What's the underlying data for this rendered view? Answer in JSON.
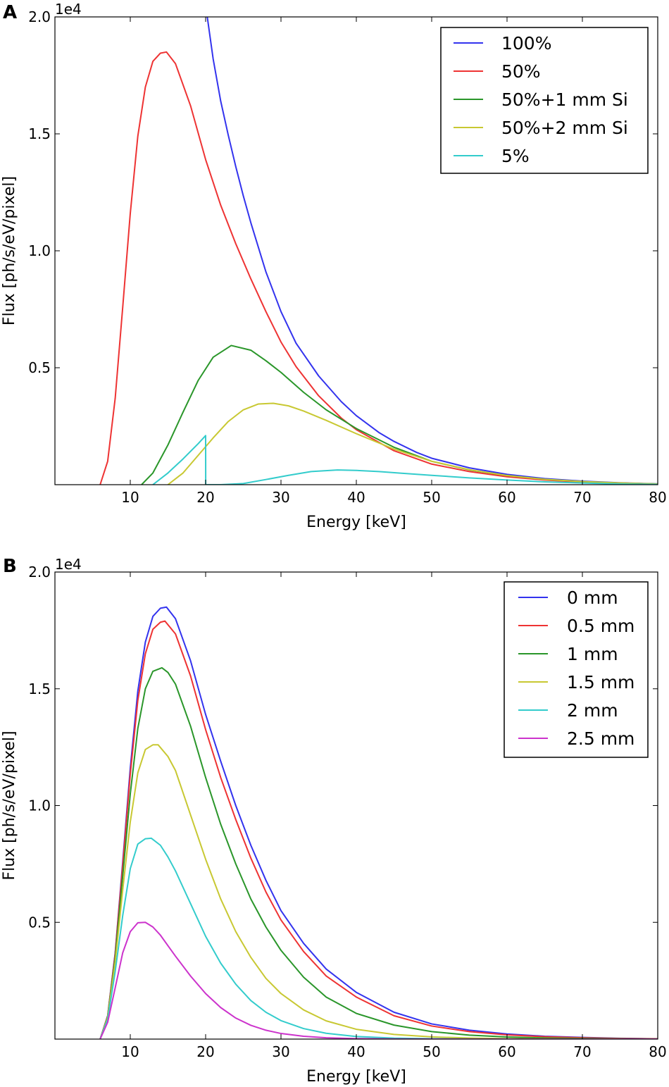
{
  "chart_data": [
    {
      "panel": "A",
      "type": "line",
      "xlabel": "Energy [keV]",
      "ylabel": "Flux [ph/s/eV/pixel]",
      "offset_text": "1e4",
      "xlim": [
        0,
        80
      ],
      "ylim": [
        0,
        20000
      ],
      "xticks": [
        10,
        20,
        30,
        40,
        50,
        60,
        70,
        80
      ],
      "yticks": [
        {
          "value": 5000,
          "label": "0.5"
        },
        {
          "value": 10000,
          "label": "1.0"
        },
        {
          "value": 15000,
          "label": "1.5"
        },
        {
          "value": 20000,
          "label": "2.0"
        }
      ],
      "legend_position": "top-right",
      "series": [
        {
          "name": "100%",
          "color": "#3333ee",
          "x": [
            20,
            21,
            22,
            23,
            24,
            25,
            26,
            28,
            30,
            32,
            35,
            38,
            40,
            43,
            45,
            48,
            50,
            55,
            60,
            65,
            70,
            75,
            80
          ],
          "y": [
            20500,
            18200,
            16400,
            14950,
            13600,
            12350,
            11200,
            9100,
            7400,
            6050,
            4650,
            3550,
            2950,
            2230,
            1850,
            1380,
            1130,
            720,
            440,
            260,
            150,
            80,
            35
          ]
        },
        {
          "name": "50%",
          "color": "#ee3333",
          "x": [
            6,
            7,
            8,
            9,
            10,
            11,
            12,
            13,
            14,
            14.8,
            16,
            18,
            20,
            22,
            24,
            26,
            28,
            30,
            32,
            35,
            38,
            40,
            45,
            50,
            55,
            60,
            65,
            70,
            75,
            80
          ],
          "y": [
            0,
            1000,
            3700,
            7600,
            11600,
            14900,
            17000,
            18100,
            18450,
            18500,
            18000,
            16200,
            13900,
            11950,
            10300,
            8800,
            7400,
            6100,
            5050,
            3800,
            2850,
            2350,
            1450,
            880,
            560,
            340,
            200,
            110,
            60,
            25
          ]
        },
        {
          "name": "50%+1 mm Si",
          "color": "#2a962a",
          "x": [
            11.5,
            13,
            15,
            17,
            19,
            21,
            23.4,
            26,
            28,
            30,
            33,
            36,
            40,
            45,
            50,
            55,
            60,
            65,
            70,
            75,
            80
          ],
          "y": [
            0,
            500,
            1700,
            3100,
            4450,
            5450,
            5950,
            5750,
            5300,
            4800,
            3950,
            3200,
            2400,
            1600,
            1000,
            630,
            390,
            230,
            130,
            70,
            30
          ]
        },
        {
          "name": "50%+2 mm Si",
          "color": "#c8c832",
          "x": [
            15,
            17,
            19,
            21,
            23,
            25,
            27,
            29,
            31,
            33,
            36,
            40,
            45,
            50,
            55,
            60,
            65,
            70,
            75,
            80
          ],
          "y": [
            0,
            500,
            1250,
            2000,
            2700,
            3200,
            3450,
            3480,
            3370,
            3150,
            2750,
            2180,
            1520,
            1000,
            640,
            390,
            230,
            130,
            70,
            30
          ]
        },
        {
          "name": "5%",
          "color": "#33cccc",
          "x": [
            13,
            15,
            17,
            19,
            20,
            20.01,
            22,
            25,
            28,
            31,
            34,
            37.5,
            40,
            43,
            46,
            50,
            55,
            60,
            65,
            70,
            75,
            80
          ],
          "y": [
            0,
            500,
            1100,
            1750,
            2100,
            0,
            0,
            50,
            220,
            400,
            560,
            630,
            610,
            560,
            490,
            400,
            290,
            200,
            120,
            70,
            30,
            10
          ]
        }
      ]
    },
    {
      "panel": "B",
      "type": "line",
      "xlabel": "Energy [keV]",
      "ylabel": "Flux [ph/s/eV/pixel]",
      "offset_text": "1e4",
      "xlim": [
        0,
        80
      ],
      "ylim": [
        0,
        20000
      ],
      "xticks": [
        10,
        20,
        30,
        40,
        50,
        60,
        70,
        80
      ],
      "yticks": [
        {
          "value": 5000,
          "label": "0.5"
        },
        {
          "value": 10000,
          "label": "1.0"
        },
        {
          "value": 15000,
          "label": "1.5"
        },
        {
          "value": 20000,
          "label": "2.0"
        }
      ],
      "legend_position": "top-right",
      "series": [
        {
          "name": "0 mm",
          "color": "#3333ee",
          "x": [
            6,
            7,
            8,
            9,
            10,
            11,
            12,
            13,
            14,
            14.8,
            16,
            18,
            20,
            22,
            24,
            26,
            28,
            30,
            33,
            36,
            40,
            45,
            50,
            55,
            60,
            65,
            70,
            75,
            80
          ],
          "y": [
            0,
            1000,
            3700,
            7600,
            11600,
            14900,
            17000,
            18100,
            18450,
            18500,
            18000,
            16200,
            13900,
            11900,
            10000,
            8300,
            6800,
            5500,
            4100,
            3000,
            2000,
            1150,
            650,
            380,
            220,
            120,
            70,
            35,
            10
          ]
        },
        {
          "name": "0.5 mm",
          "color": "#ee3333",
          "x": [
            6,
            7,
            8,
            9,
            10,
            11,
            12,
            13,
            14,
            14.6,
            16,
            18,
            20,
            22,
            24,
            26,
            28,
            30,
            33,
            36,
            40,
            45,
            50,
            55,
            60,
            65,
            70,
            75,
            80
          ],
          "y": [
            0,
            990,
            3650,
            7450,
            11350,
            14500,
            16500,
            17550,
            17850,
            17900,
            17350,
            15550,
            13250,
            11200,
            9400,
            7750,
            6300,
            5100,
            3750,
            2700,
            1800,
            1000,
            560,
            320,
            180,
            100,
            55,
            25,
            10
          ]
        },
        {
          "name": "1 mm",
          "color": "#2a962a",
          "x": [
            6,
            7,
            8,
            9,
            10,
            11,
            12,
            13,
            14.2,
            15,
            16,
            18,
            20,
            22,
            24,
            26,
            28,
            30,
            33,
            36,
            40,
            45,
            50,
            55,
            60,
            65,
            70,
            75,
            80
          ],
          "y": [
            0,
            960,
            3500,
            7000,
            10500,
            13300,
            15000,
            15750,
            15900,
            15700,
            15200,
            13400,
            11200,
            9200,
            7500,
            6000,
            4800,
            3800,
            2650,
            1800,
            1100,
            600,
            320,
            170,
            90,
            50,
            25,
            10,
            5
          ]
        },
        {
          "name": "1.5 mm",
          "color": "#c8c832",
          "x": [
            6,
            7,
            8,
            9,
            10,
            11,
            12,
            13,
            13.7,
            15,
            16,
            18,
            20,
            22,
            24,
            26,
            28,
            30,
            33,
            36,
            40,
            45,
            50,
            55,
            60,
            65,
            70,
            75,
            80
          ],
          "y": [
            0,
            920,
            3300,
            6400,
            9300,
            11400,
            12400,
            12600,
            12600,
            12100,
            11500,
            9600,
            7700,
            6000,
            4600,
            3500,
            2600,
            1950,
            1250,
            780,
            420,
            200,
            95,
            45,
            20,
            10,
            5,
            2,
            0
          ]
        },
        {
          "name": "2 mm",
          "color": "#33cccc",
          "x": [
            6,
            7,
            8,
            9,
            10,
            11,
            12,
            12.8,
            14,
            15,
            16,
            18,
            20,
            22,
            24,
            26,
            28,
            30,
            33,
            36,
            40,
            45,
            50,
            55,
            60,
            65,
            70,
            75,
            80
          ],
          "y": [
            0,
            850,
            2900,
            5300,
            7300,
            8350,
            8580,
            8600,
            8300,
            7800,
            7200,
            5800,
            4400,
            3250,
            2350,
            1650,
            1150,
            790,
            450,
            250,
            110,
            40,
            15,
            5,
            2,
            0,
            0,
            0,
            0
          ]
        },
        {
          "name": "2.5 mm",
          "color": "#cc33cc",
          "x": [
            6,
            7,
            8,
            9,
            10,
            11,
            12,
            13,
            14,
            15,
            16,
            18,
            20,
            22,
            24,
            26,
            28,
            30,
            33,
            36,
            40,
            45,
            50,
            55,
            60,
            65,
            70,
            75,
            80
          ],
          "y": [
            0,
            720,
            2200,
            3700,
            4600,
            4980,
            5000,
            4800,
            4450,
            4000,
            3550,
            2700,
            1950,
            1350,
            900,
            590,
            380,
            240,
            120,
            55,
            20,
            5,
            0,
            0,
            0,
            0,
            0,
            0,
            0
          ]
        }
      ]
    }
  ]
}
